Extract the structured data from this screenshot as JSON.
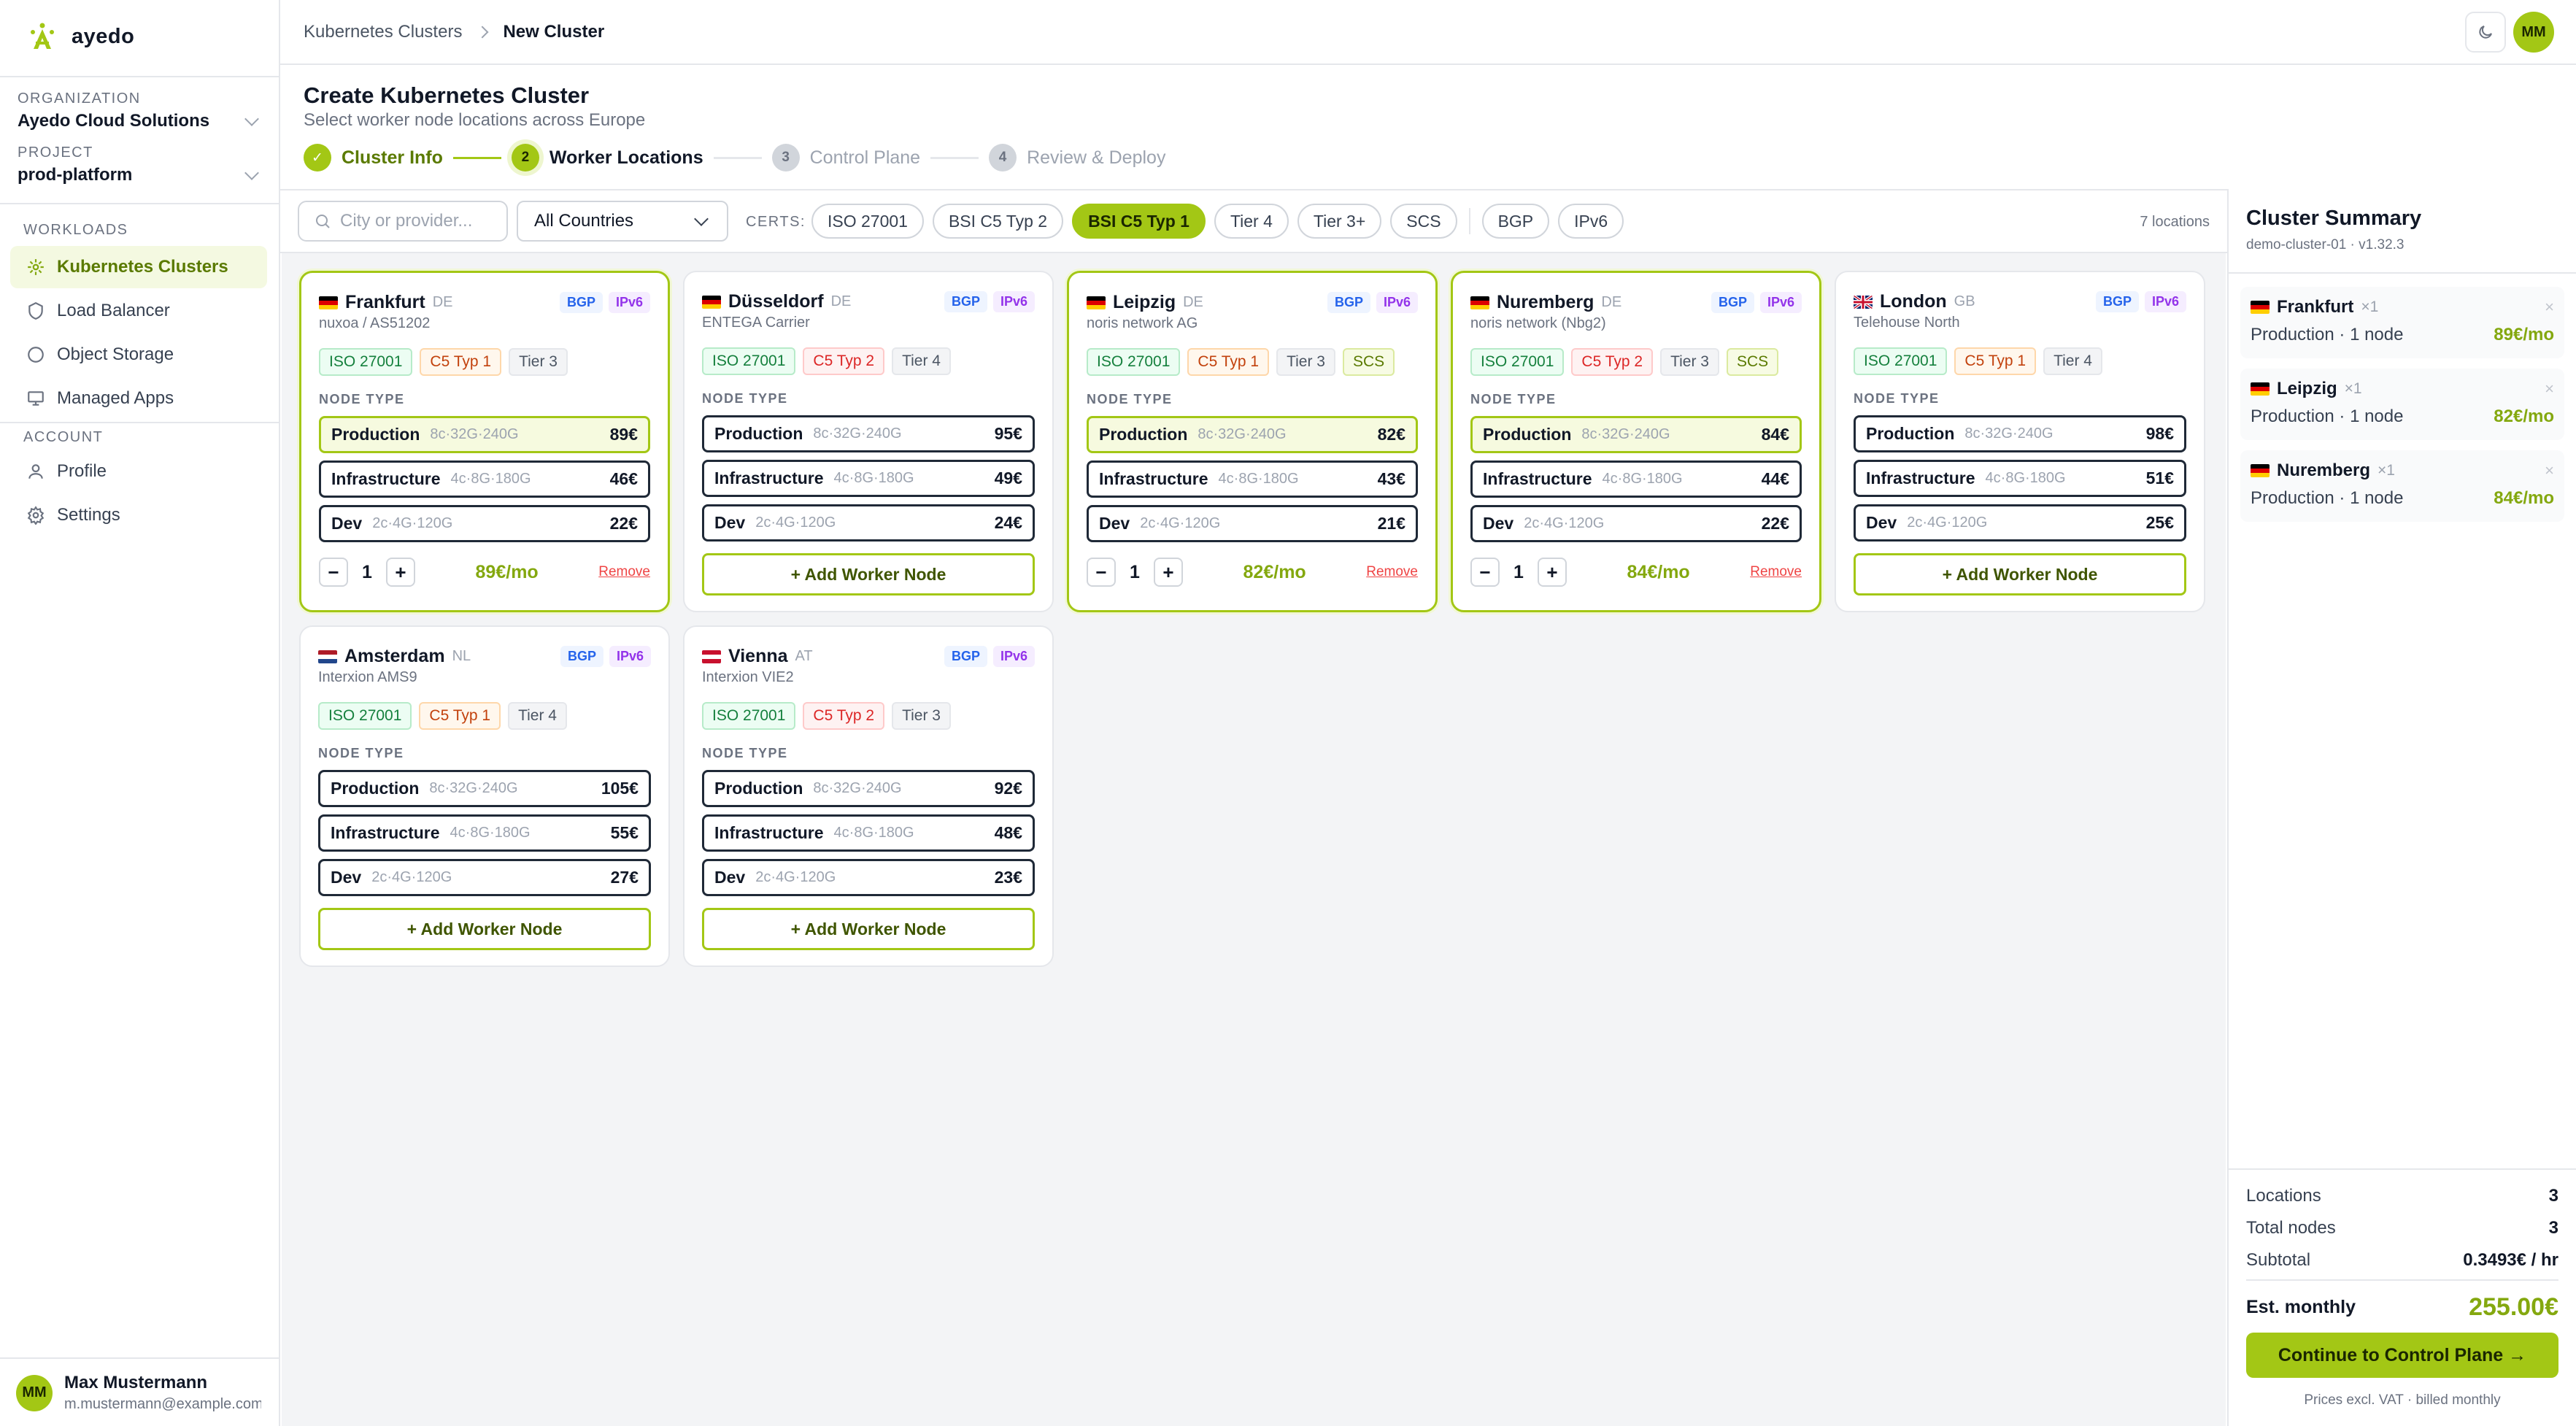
{
  "app": {
    "name": "ayedo"
  },
  "sidebar": {
    "org_label": "ORGANIZATION",
    "org_value": "Ayedo Cloud Solutions",
    "project_label": "PROJECT",
    "project_value": "prod-platform",
    "workloads_label": "WORKLOADS",
    "account_label": "ACCOUNT",
    "nav": [
      {
        "label": "Kubernetes Clusters",
        "icon": "cluster-icon",
        "active": true
      },
      {
        "label": "Load Balancer",
        "icon": "shield-icon"
      },
      {
        "label": "Object Storage",
        "icon": "storage-icon"
      },
      {
        "label": "Managed Apps",
        "icon": "monitor-icon"
      }
    ],
    "account_nav": [
      {
        "label": "Profile",
        "icon": "user-icon"
      },
      {
        "label": "Settings",
        "icon": "gear-icon"
      }
    ],
    "user": {
      "initials": "MM",
      "name": "Max Mustermann",
      "email": "m.mustermann@example.com"
    }
  },
  "topbar": {
    "breadcrumb": [
      "Kubernetes Clusters",
      "New Cluster"
    ],
    "avatar_initials": "MM"
  },
  "header": {
    "title": "Create Kubernetes Cluster",
    "subtitle": "Select worker node locations across Europe",
    "steps": [
      {
        "num": "✓",
        "label": "Cluster Info",
        "state": "done"
      },
      {
        "num": "2",
        "label": "Worker Locations",
        "state": "current"
      },
      {
        "num": "3",
        "label": "Control Plane",
        "state": "todo"
      },
      {
        "num": "4",
        "label": "Review & Deploy",
        "state": "todo"
      }
    ]
  },
  "filters": {
    "search_placeholder": "City or provider...",
    "country_value": "All Countries",
    "certs_label": "CERTS:",
    "chips": [
      {
        "label": "ISO 27001",
        "active": false
      },
      {
        "label": "BSI C5 Typ 2",
        "active": false
      },
      {
        "label": "BSI C5 Typ 1",
        "active": true
      },
      {
        "label": "Tier 4",
        "active": false
      },
      {
        "label": "Tier 3+",
        "active": false
      },
      {
        "label": "SCS",
        "active": false
      }
    ],
    "net_chips": [
      {
        "label": "BGP"
      },
      {
        "label": "IPv6"
      }
    ],
    "location_count": "7 locations"
  },
  "node_type_label": "NODE TYPE",
  "add_label": "+ Add Worker Node",
  "remove_label": "Remove",
  "locations": [
    {
      "city": "Frankfurt",
      "cc": "DE",
      "flag": "de",
      "provider": "nuxoa / AS51202",
      "selected": true,
      "badges": [
        "BGP",
        "IPv6"
      ],
      "tags": [
        {
          "t": "ISO 27001",
          "k": "iso"
        },
        {
          "t": "C5 Typ 1",
          "k": "c5-1"
        },
        {
          "t": "Tier 3",
          "k": "tier"
        }
      ],
      "nodes": [
        {
          "name": "Production",
          "spec": "8c·32G·240G",
          "price": "89€",
          "sel": true
        },
        {
          "name": "Infrastructure",
          "spec": "4c·8G·180G",
          "price": "46€"
        },
        {
          "name": "Dev",
          "spec": "2c·4G·120G",
          "price": "22€"
        }
      ],
      "qty": "1",
      "monthly": "89€/mo"
    },
    {
      "city": "Düsseldorf",
      "cc": "DE",
      "flag": "de",
      "provider": "ENTEGA Carrier",
      "selected": false,
      "badges": [
        "BGP",
        "IPv6"
      ],
      "tags": [
        {
          "t": "ISO 27001",
          "k": "iso"
        },
        {
          "t": "C5 Typ 2",
          "k": "c5-2"
        },
        {
          "t": "Tier 4",
          "k": "tier"
        }
      ],
      "nodes": [
        {
          "name": "Production",
          "spec": "8c·32G·240G",
          "price": "95€"
        },
        {
          "name": "Infrastructure",
          "spec": "4c·8G·180G",
          "price": "49€"
        },
        {
          "name": "Dev",
          "spec": "2c·4G·120G",
          "price": "24€"
        }
      ]
    },
    {
      "city": "Leipzig",
      "cc": "DE",
      "flag": "de",
      "provider": "noris network AG",
      "selected": true,
      "badges": [
        "BGP",
        "IPv6"
      ],
      "tags": [
        {
          "t": "ISO 27001",
          "k": "iso"
        },
        {
          "t": "C5 Typ 1",
          "k": "c5-1"
        },
        {
          "t": "Tier 3",
          "k": "tier"
        },
        {
          "t": "SCS",
          "k": "scs"
        }
      ],
      "nodes": [
        {
          "name": "Production",
          "spec": "8c·32G·240G",
          "price": "82€",
          "sel": true
        },
        {
          "name": "Infrastructure",
          "spec": "4c·8G·180G",
          "price": "43€"
        },
        {
          "name": "Dev",
          "spec": "2c·4G·120G",
          "price": "21€"
        }
      ],
      "qty": "1",
      "monthly": "82€/mo"
    },
    {
      "city": "Nuremberg",
      "cc": "DE",
      "flag": "de",
      "provider": "noris network (Nbg2)",
      "selected": true,
      "badges": [
        "BGP",
        "IPv6"
      ],
      "tags": [
        {
          "t": "ISO 27001",
          "k": "iso"
        },
        {
          "t": "C5 Typ 2",
          "k": "c5-2"
        },
        {
          "t": "Tier 3",
          "k": "tier"
        },
        {
          "t": "SCS",
          "k": "scs"
        }
      ],
      "nodes": [
        {
          "name": "Production",
          "spec": "8c·32G·240G",
          "price": "84€",
          "sel": true
        },
        {
          "name": "Infrastructure",
          "spec": "4c·8G·180G",
          "price": "44€"
        },
        {
          "name": "Dev",
          "spec": "2c·4G·120G",
          "price": "22€"
        }
      ],
      "qty": "1",
      "monthly": "84€/mo"
    },
    {
      "city": "London",
      "cc": "GB",
      "flag": "gb",
      "provider": "Telehouse North",
      "selected": false,
      "badges": [
        "BGP",
        "IPv6"
      ],
      "tags": [
        {
          "t": "ISO 27001",
          "k": "iso"
        },
        {
          "t": "C5 Typ 1",
          "k": "c5-1"
        },
        {
          "t": "Tier 4",
          "k": "tier"
        }
      ],
      "nodes": [
        {
          "name": "Production",
          "spec": "8c·32G·240G",
          "price": "98€"
        },
        {
          "name": "Infrastructure",
          "spec": "4c·8G·180G",
          "price": "51€"
        },
        {
          "name": "Dev",
          "spec": "2c·4G·120G",
          "price": "25€"
        }
      ]
    },
    {
      "city": "Amsterdam",
      "cc": "NL",
      "flag": "nl",
      "provider": "Interxion AMS9",
      "selected": false,
      "badges": [
        "BGP",
        "IPv6"
      ],
      "tags": [
        {
          "t": "ISO 27001",
          "k": "iso"
        },
        {
          "t": "C5 Typ 1",
          "k": "c5-1"
        },
        {
          "t": "Tier 4",
          "k": "tier"
        }
      ],
      "nodes": [
        {
          "name": "Production",
          "spec": "8c·32G·240G",
          "price": "105€"
        },
        {
          "name": "Infrastructure",
          "spec": "4c·8G·180G",
          "price": "55€"
        },
        {
          "name": "Dev",
          "spec": "2c·4G·120G",
          "price": "27€"
        }
      ]
    },
    {
      "city": "Vienna",
      "cc": "AT",
      "flag": "at",
      "provider": "Interxion VIE2",
      "selected": false,
      "badges": [
        "BGP",
        "IPv6"
      ],
      "tags": [
        {
          "t": "ISO 27001",
          "k": "iso"
        },
        {
          "t": "C5 Typ 2",
          "k": "c5-2"
        },
        {
          "t": "Tier 3",
          "k": "tier"
        }
      ],
      "nodes": [
        {
          "name": "Production",
          "spec": "8c·32G·240G",
          "price": "92€"
        },
        {
          "name": "Infrastructure",
          "spec": "4c·8G·180G",
          "price": "48€"
        },
        {
          "name": "Dev",
          "spec": "2c·4G·120G",
          "price": "23€"
        }
      ]
    }
  ],
  "summary": {
    "title": "Cluster Summary",
    "subtitle": "demo-cluster-01 · v1.32.3",
    "items": [
      {
        "city": "Frankfurt",
        "flag": "de",
        "qty": "×1",
        "detail": "Production · 1 node",
        "price": "89€/mo"
      },
      {
        "city": "Leipzig",
        "flag": "de",
        "qty": "×1",
        "detail": "Production · 1 node",
        "price": "82€/mo"
      },
      {
        "city": "Nuremberg",
        "flag": "de",
        "qty": "×1",
        "detail": "Production · 1 node",
        "price": "84€/mo"
      }
    ],
    "locations_label": "Locations",
    "locations_value": "3",
    "nodes_label": "Total nodes",
    "nodes_value": "3",
    "subtotal_label": "Subtotal",
    "subtotal_value": "0.3493€ / hr",
    "monthly_label": "Est. monthly",
    "monthly_value": "255.00€",
    "cta": "Continue to Control Plane →",
    "note": "Prices excl. VAT · billed monthly"
  },
  "colors": {
    "accent": "#a3c715",
    "accent_text": "#84a80f",
    "danger": "#ef4444"
  }
}
